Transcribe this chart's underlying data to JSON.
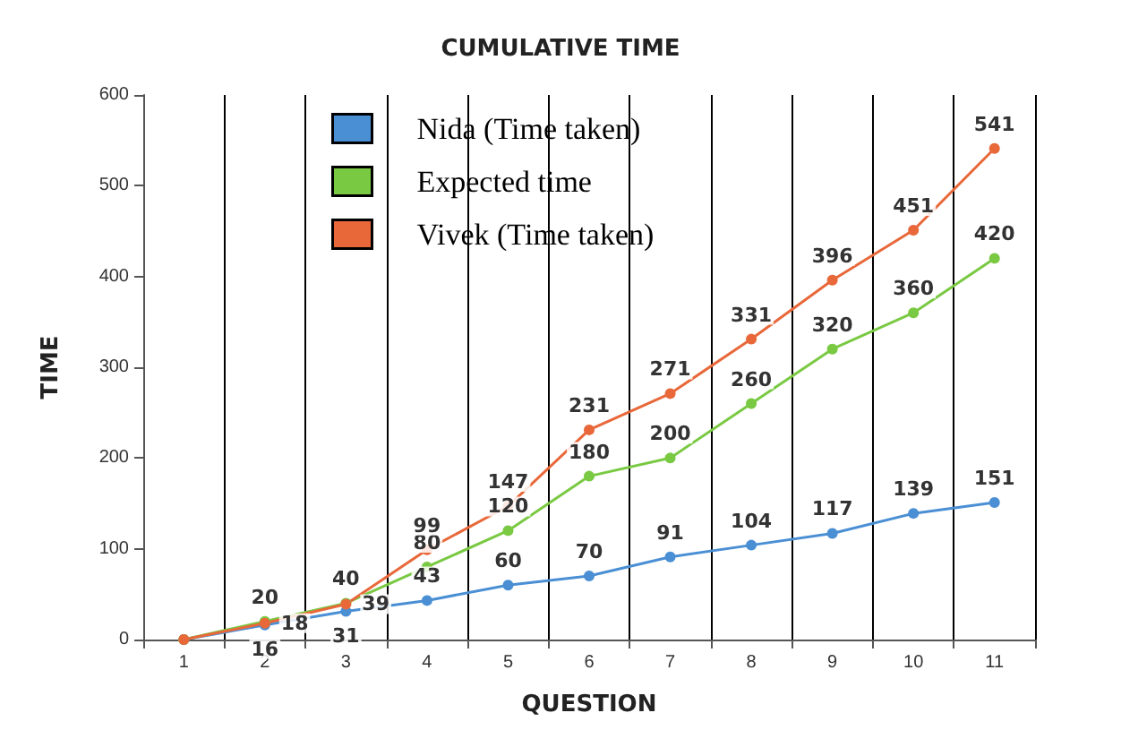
{
  "chart_data": {
    "type": "line",
    "title": "CUMULATIVE TIME",
    "xlabel": "QUESTION",
    "ylabel": "TIME",
    "categories": [
      "1",
      "2",
      "3",
      "4",
      "5",
      "6",
      "7",
      "8",
      "9",
      "10",
      "11"
    ],
    "series": [
      {
        "name": "Nida (Time taken)",
        "color": "#4a8fd4",
        "values": [
          0,
          16,
          31,
          43,
          60,
          70,
          91,
          104,
          117,
          139,
          151
        ],
        "value_labels": [
          null,
          "16",
          "31",
          "43",
          "60",
          "70",
          "91",
          "104",
          "117",
          "139",
          "151"
        ]
      },
      {
        "name": "Expected time",
        "color": "#7ac943",
        "values": [
          0,
          20,
          40,
          80,
          120,
          180,
          200,
          260,
          320,
          360,
          420
        ],
        "value_labels": [
          null,
          "20",
          "40",
          "80",
          "120",
          "180",
          "200",
          "260",
          "320",
          "360",
          "420"
        ]
      },
      {
        "name": "Vivek (Time taken)",
        "color": "#e8683a",
        "values": [
          0,
          18,
          39,
          99,
          147,
          231,
          271,
          331,
          396,
          451,
          541
        ],
        "value_labels": [
          null,
          "18",
          "39",
          "99",
          "147",
          "231",
          "271",
          "331",
          "396",
          "451",
          "541"
        ]
      }
    ],
    "ylim": [
      0,
      600
    ],
    "yticks": [
      0,
      100,
      200,
      300,
      400,
      500,
      600
    ],
    "grid": "x",
    "legend": "top left",
    "marker": "circle",
    "line_style": "solid"
  }
}
